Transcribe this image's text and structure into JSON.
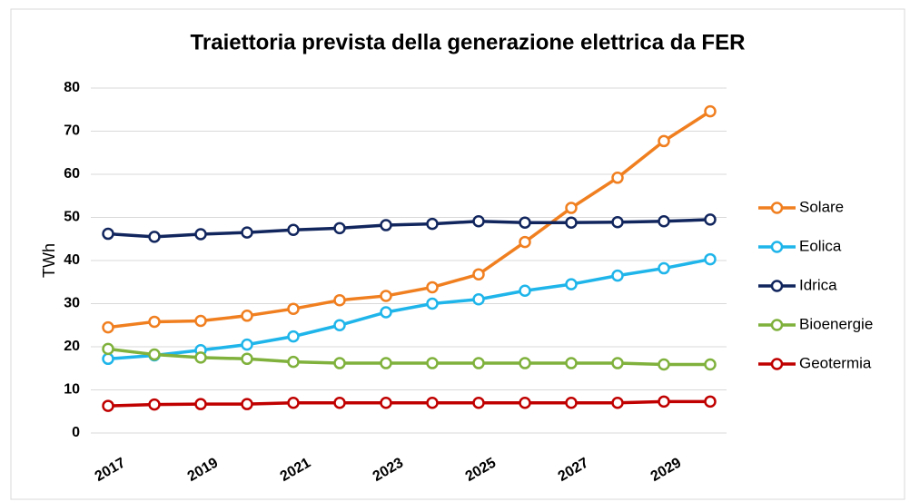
{
  "chart_data": {
    "type": "line",
    "title": "Traiettoria prevista della generazione elettrica da FER",
    "y_label": "TWh",
    "categories": [
      "2017",
      null,
      "2019",
      null,
      "2021",
      null,
      "2023",
      null,
      "2025",
      null,
      "2027",
      null,
      "2029",
      null
    ],
    "series": [
      {
        "name": "Solare",
        "color": "#f07f20",
        "values": [
          24.5,
          25.8,
          26,
          27.2,
          28.8,
          30.8,
          31.8,
          33.8,
          36.8,
          44.3,
          52.2,
          59.2,
          67.7,
          74.6
        ]
      },
      {
        "name": "Eolica",
        "color": "#1fb5ea",
        "values": [
          17.2,
          18,
          19.2,
          20.5,
          22.4,
          25,
          28,
          30,
          31,
          33,
          34.5,
          36.5,
          38.2,
          40.3
        ]
      },
      {
        "name": "Idrica",
        "color": "#12265e",
        "values": [
          46.2,
          45.5,
          46.1,
          46.5,
          47.1,
          47.5,
          48.2,
          48.5,
          49.1,
          48.8,
          48.8,
          48.9,
          49.1,
          49.5
        ]
      },
      {
        "name": "Bioenergie",
        "color": "#7fb13c",
        "values": [
          19.5,
          18.2,
          17.5,
          17.2,
          16.5,
          16.2,
          16.2,
          16.2,
          16.2,
          16.2,
          16.2,
          16.2,
          15.9,
          15.9
        ]
      },
      {
        "name": "Geotermia",
        "color": "#c00000",
        "values": [
          6.3,
          6.6,
          6.7,
          6.7,
          7,
          7,
          7,
          7,
          7,
          7,
          7,
          7,
          7.3,
          7.3
        ]
      }
    ],
    "ylim": [
      0,
      80
    ],
    "yticks": [
      0,
      10,
      20,
      30,
      40,
      50,
      60,
      70,
      80
    ],
    "grid": true,
    "legend": "right"
  }
}
